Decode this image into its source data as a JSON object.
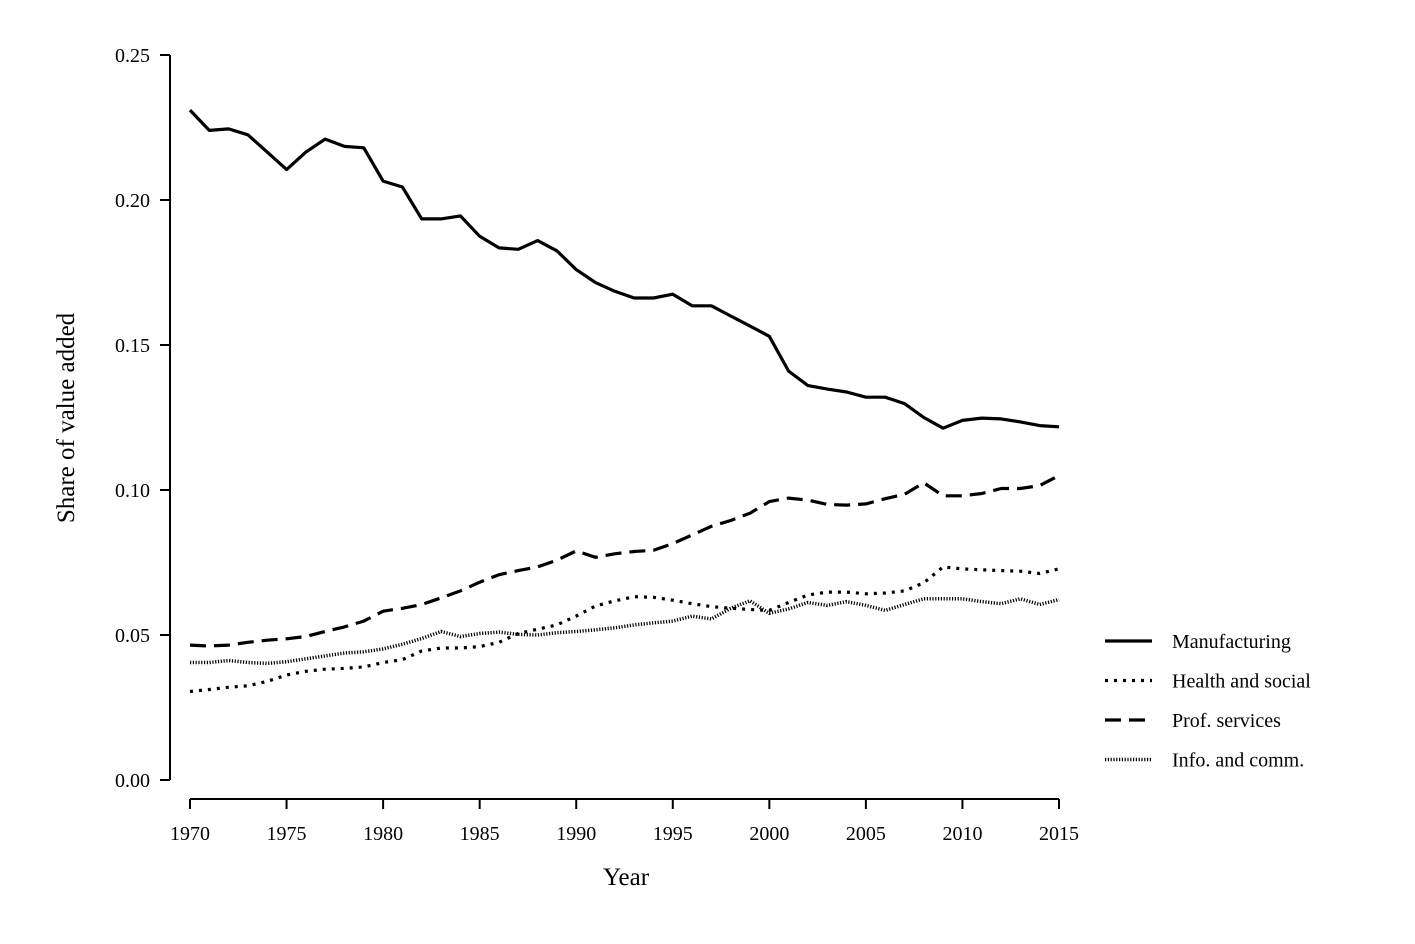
{
  "chart_data": {
    "type": "line",
    "title": "",
    "xlabel": "Year",
    "ylabel": "Share of value added",
    "xlim": [
      1970,
      2015
    ],
    "ylim": [
      0,
      0.25
    ],
    "x_ticks": [
      1970,
      1975,
      1980,
      1985,
      1990,
      1995,
      2000,
      2005,
      2010,
      2015
    ],
    "y_ticks": [
      "0.00",
      "0.05",
      "0.10",
      "0.15",
      "0.20",
      "0.25"
    ],
    "y_tick_values": [
      0,
      0.05,
      0.1,
      0.15,
      0.2,
      0.25
    ],
    "grid": false,
    "legend_position": "right",
    "x": [
      1970,
      1971,
      1972,
      1973,
      1974,
      1975,
      1976,
      1977,
      1978,
      1979,
      1980,
      1981,
      1982,
      1983,
      1984,
      1985,
      1986,
      1987,
      1988,
      1989,
      1990,
      1991,
      1992,
      1993,
      1994,
      1995,
      1996,
      1997,
      1998,
      1999,
      2000,
      2001,
      2002,
      2003,
      2004,
      2005,
      2006,
      2007,
      2008,
      2009,
      2010,
      2011,
      2012,
      2013,
      2014,
      2015
    ],
    "series": [
      {
        "name": "Manufacturing",
        "style": "solid",
        "color": "#000000",
        "values": [
          0.231,
          0.224,
          0.2245,
          0.2225,
          0.2165,
          0.2105,
          0.2165,
          0.221,
          0.2185,
          0.218,
          0.2065,
          0.2045,
          0.1935,
          0.1935,
          0.1945,
          0.1875,
          0.1835,
          0.183,
          0.186,
          0.1825,
          0.176,
          0.1715,
          0.1685,
          0.1662,
          0.1662,
          0.1675,
          0.1635,
          0.1635,
          0.16,
          0.1565,
          0.153,
          0.141,
          0.136,
          0.1348,
          0.1338,
          0.132,
          0.132,
          0.1298,
          0.125,
          0.1213,
          0.124,
          0.1248,
          0.1245,
          0.1235,
          0.1222,
          0.1218
        ]
      },
      {
        "name": "Health and social",
        "style": "dotted",
        "color": "#000000",
        "values": [
          0.0305,
          0.0312,
          0.032,
          0.0325,
          0.034,
          0.0362,
          0.0375,
          0.0382,
          0.0385,
          0.039,
          0.0405,
          0.0415,
          0.0445,
          0.0455,
          0.0455,
          0.046,
          0.0475,
          0.0505,
          0.052,
          0.0535,
          0.0565,
          0.06,
          0.0618,
          0.0632,
          0.063,
          0.062,
          0.0608,
          0.0598,
          0.0592,
          0.0588,
          0.0585,
          0.0612,
          0.0638,
          0.0648,
          0.0648,
          0.0642,
          0.0645,
          0.0652,
          0.068,
          0.0735,
          0.0728,
          0.0725,
          0.0722,
          0.072,
          0.0712,
          0.0728
        ]
      },
      {
        "name": "Prof. services",
        "style": "dashed",
        "color": "#000000",
        "values": [
          0.0465,
          0.0462,
          0.0465,
          0.0475,
          0.0482,
          0.0487,
          0.0495,
          0.0512,
          0.0528,
          0.0548,
          0.0582,
          0.0592,
          0.0605,
          0.0628,
          0.0652,
          0.0682,
          0.0708,
          0.0722,
          0.0735,
          0.0758,
          0.079,
          0.0768,
          0.078,
          0.0788,
          0.0792,
          0.0815,
          0.0845,
          0.0875,
          0.0895,
          0.092,
          0.096,
          0.0972,
          0.0965,
          0.095,
          0.0948,
          0.0952,
          0.097,
          0.0985,
          0.1025,
          0.098,
          0.098,
          0.0988,
          0.1005,
          0.1005,
          0.1015,
          0.105
        ]
      },
      {
        "name": "Info. and comm.",
        "style": "fine-dotted",
        "color": "#000000",
        "values": [
          0.0405,
          0.0405,
          0.0412,
          0.0405,
          0.0402,
          0.0408,
          0.0418,
          0.0428,
          0.0438,
          0.0442,
          0.0452,
          0.0468,
          0.0488,
          0.0512,
          0.0495,
          0.0505,
          0.051,
          0.0502,
          0.05,
          0.0508,
          0.0512,
          0.0518,
          0.0525,
          0.0535,
          0.0542,
          0.0548,
          0.0565,
          0.0555,
          0.0592,
          0.0618,
          0.0575,
          0.059,
          0.0612,
          0.0602,
          0.0615,
          0.0602,
          0.0585,
          0.0605,
          0.0625,
          0.0625,
          0.0625,
          0.0615,
          0.0608,
          0.0625,
          0.0605,
          0.0622
        ]
      }
    ]
  }
}
